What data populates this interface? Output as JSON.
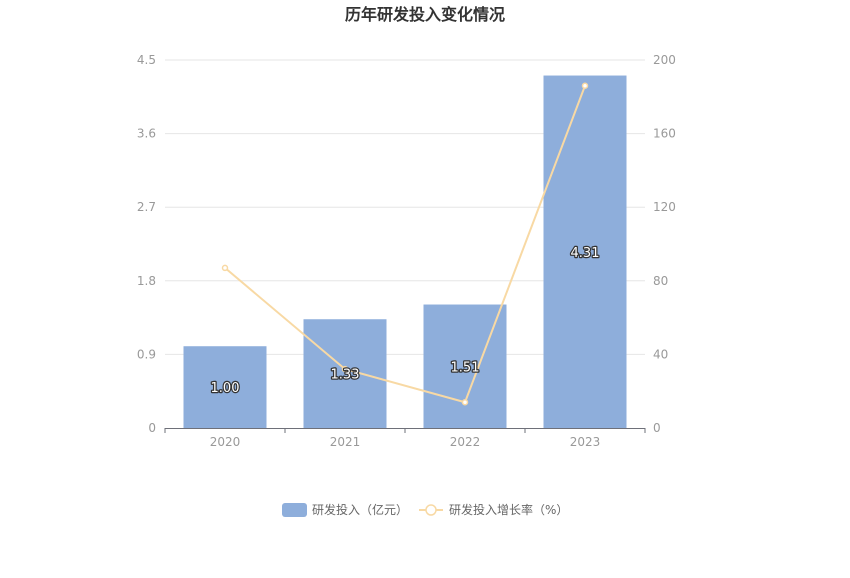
{
  "chart_data": {
    "type": "bar",
    "title": "历年研发投入变化情况",
    "categories": [
      "2020",
      "2021",
      "2022",
      "2023"
    ],
    "series": [
      {
        "name": "研发投入（亿元）",
        "type": "bar",
        "axis": "left",
        "values": [
          1.0,
          1.33,
          1.51,
          4.31
        ],
        "data_labels": [
          "1.00",
          "1.33",
          "1.51",
          "4.31"
        ],
        "color": "#8eaedb"
      },
      {
        "name": "研发投入增长率（%）",
        "type": "line",
        "axis": "right",
        "values": [
          87,
          32,
          14,
          186
        ],
        "color": "#f8d9a4"
      }
    ],
    "y_left": {
      "ylim": [
        0,
        4.5
      ],
      "ticks": [
        "0",
        "0.9",
        "1.8",
        "2.7",
        "3.6",
        "4.5"
      ]
    },
    "y_right": {
      "ylim": [
        0,
        200
      ],
      "ticks": [
        "0",
        "40",
        "80",
        "120",
        "160",
        "200"
      ]
    },
    "grid": true,
    "legend_position": "bottom-center"
  }
}
